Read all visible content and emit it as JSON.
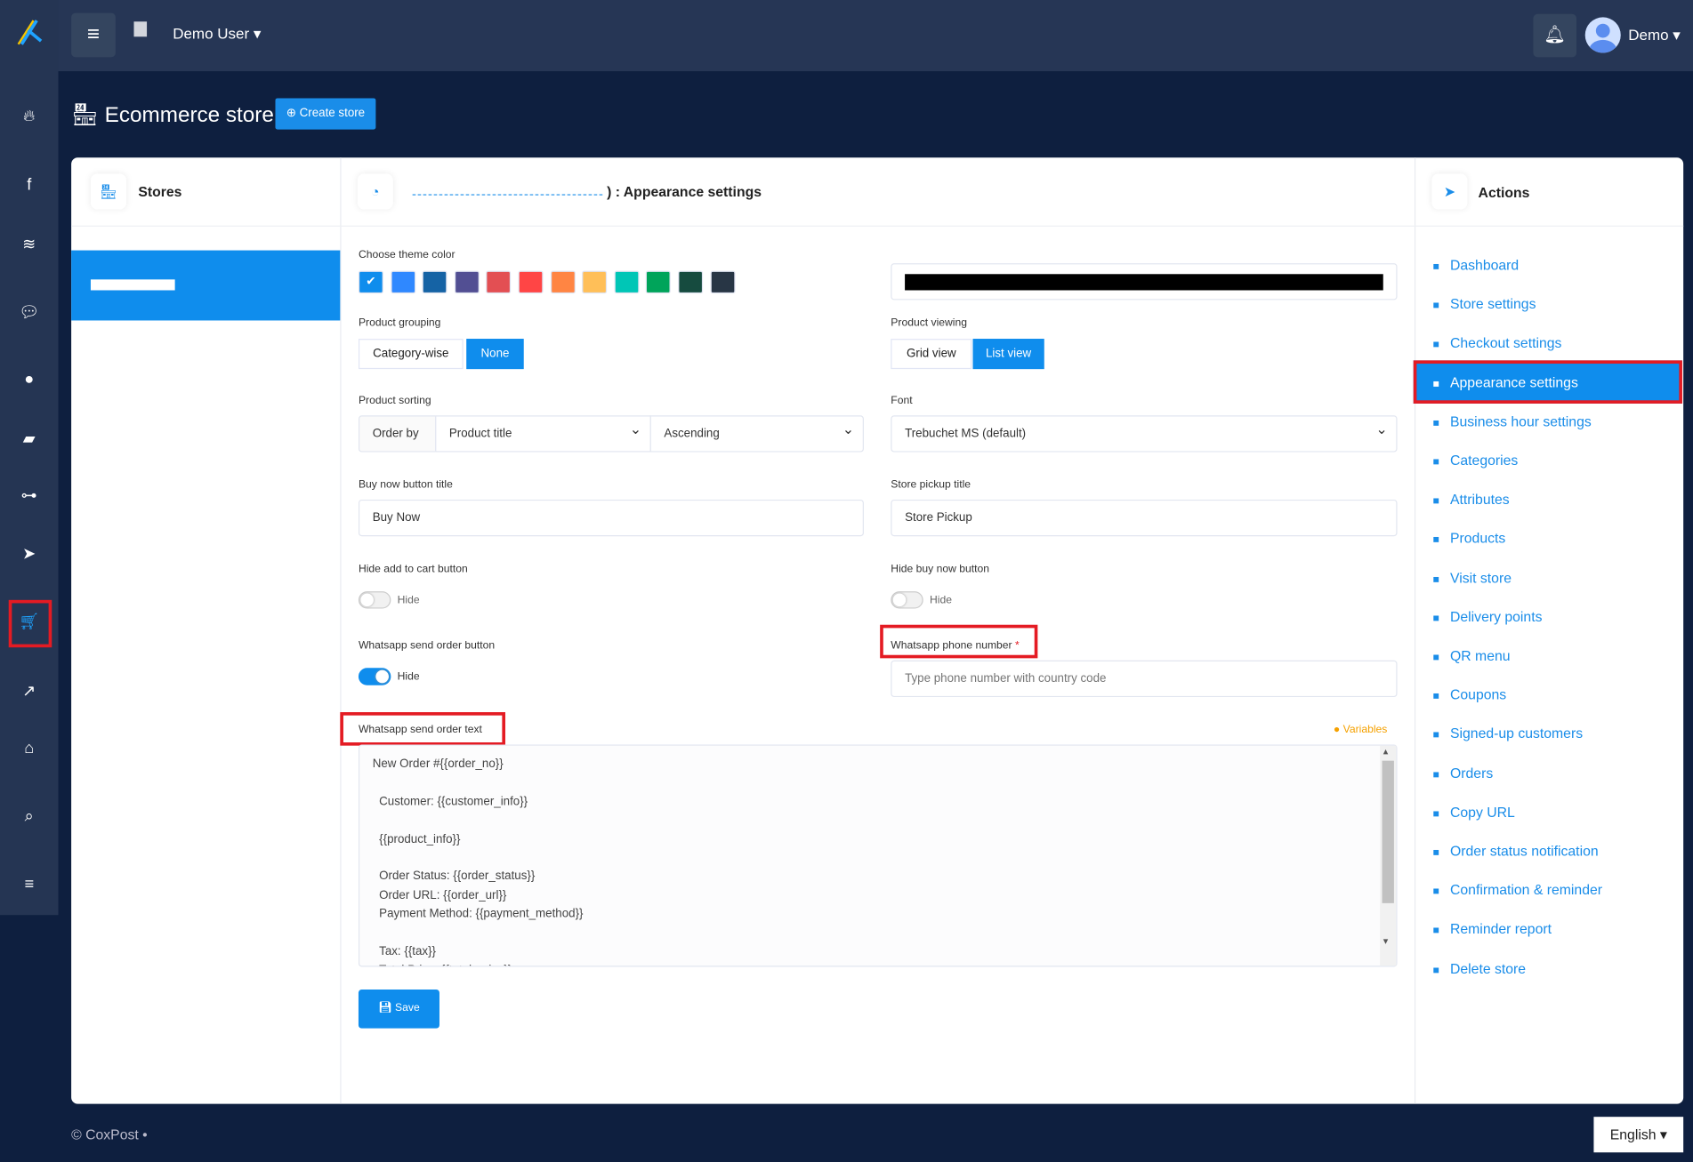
{
  "topbar": {
    "user_label": "Demo User ▾",
    "account_label": "Demo ▾",
    "menu_icon": "hamburger-icon",
    "bell_icon": "bell-icon"
  },
  "sidebar": {
    "icons": [
      "fire-icon",
      "facebook-icon",
      "wifi-icon",
      "comments-icon",
      "user-circle-icon",
      "message-icon",
      "sitemap-icon",
      "paper-plane-icon",
      "cart-icon",
      "share-icon",
      "store-icon",
      "search-icon",
      "database-icon"
    ],
    "active": "cart-icon"
  },
  "page": {
    "title": "Ecommerce store",
    "create_button": "Create store"
  },
  "stores": {
    "title": "Stores"
  },
  "settings": {
    "title_suffix": ") : Appearance settings",
    "theme_color_label": "Choose theme color",
    "theme_colors": [
      "#0f8ded",
      "#2f88ff",
      "#1563a5",
      "#524f93",
      "#e34f53",
      "#ff4545",
      "#ff8543",
      "#ffbf58",
      "#00c6b6",
      "#00a45a",
      "#164b3f",
      "#283645"
    ],
    "selected_color": "#0f8ded",
    "product_grouping_label": "Product grouping",
    "grouping_options": [
      "Category-wise",
      "None"
    ],
    "grouping_selected": "None",
    "product_viewing_label": "Product viewing",
    "viewing_options": [
      "Grid view",
      "List view"
    ],
    "viewing_selected": "List view",
    "product_sorting_label": "Product sorting",
    "order_by": "Order by",
    "sort_field": "Product title",
    "sort_direction": "Ascending",
    "font_label": "Font",
    "font_value": "Trebuchet MS (default)",
    "buy_now_label": "Buy now button title",
    "buy_now_value": "Buy Now",
    "store_pickup_label": "Store pickup title",
    "store_pickup_value": "Store Pickup",
    "hide_cart_label": "Hide add to cart button",
    "hide_cart_toggle": "Hide",
    "hide_cart_on": false,
    "hide_buy_label": "Hide buy now button",
    "hide_buy_toggle": "Hide",
    "hide_buy_on": false,
    "wa_button_label": "Whatsapp send order button",
    "wa_button_toggle": "Hide",
    "wa_button_on": true,
    "wa_phone_label": "Whatsapp phone number",
    "wa_phone_placeholder": "Type phone number with country code",
    "wa_text_label": "Whatsapp send order text",
    "variables_link": "Variables",
    "wa_text_value": "New Order #{{order_no}}\n\n  Customer: {{customer_info}}\n\n  {{product_info}}\n\n  Order Status: {{order_status}}\n  Order URL: {{order_url}}\n  Payment Method: {{payment_method}}\n\n  Tax: {{tax}}\n  Total Price: {{total_price}}",
    "save_button": "Save"
  },
  "actions": {
    "title": "Actions",
    "items": [
      {
        "label": "Dashboard",
        "icon": "dashboard-icon"
      },
      {
        "label": "Store settings",
        "icon": "gear-icon"
      },
      {
        "label": "Checkout settings",
        "icon": "credit-card-icon"
      },
      {
        "label": "Appearance settings",
        "icon": "palette-icon"
      },
      {
        "label": "Business hour settings",
        "icon": "calendar-icon"
      },
      {
        "label": "Categories",
        "icon": "columns-icon"
      },
      {
        "label": "Attributes",
        "icon": "palette-icon"
      },
      {
        "label": "Products",
        "icon": "boxes-icon"
      },
      {
        "label": "Visit store",
        "icon": "id-card-icon"
      },
      {
        "label": "Delivery points",
        "icon": "map-marker-icon"
      },
      {
        "label": "QR menu",
        "icon": "qrcode-icon"
      },
      {
        "label": "Coupons",
        "icon": "coupon-icon"
      },
      {
        "label": "Signed-up customers",
        "icon": "users-icon"
      },
      {
        "label": "Orders",
        "icon": "cart-icon"
      },
      {
        "label": "Copy URL",
        "icon": "copy-icon"
      },
      {
        "label": "Order status notification",
        "icon": "bell-icon"
      },
      {
        "label": "Confirmation & reminder",
        "icon": "bullhorn-icon"
      },
      {
        "label": "Reminder report",
        "icon": "eye-icon"
      },
      {
        "label": "Delete store",
        "icon": "trash-icon"
      }
    ],
    "active": "Appearance settings"
  },
  "footer": {
    "copyright": "© CoxPost  •",
    "language": "English ▾"
  }
}
